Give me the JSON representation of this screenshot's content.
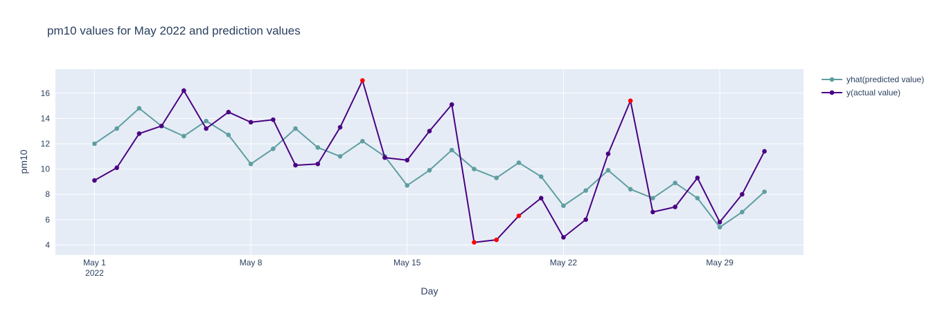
{
  "chart_data": {
    "type": "line",
    "title": "pm10 values for May 2022 and prediction values",
    "xlabel": "Day",
    "ylabel": "pm10",
    "x_ticks": [
      {
        "day": 1,
        "label": "May 1",
        "sublabel": "2022"
      },
      {
        "day": 8,
        "label": "May 8",
        "sublabel": ""
      },
      {
        "day": 15,
        "label": "May 15",
        "sublabel": ""
      },
      {
        "day": 22,
        "label": "May 22",
        "sublabel": ""
      },
      {
        "day": 29,
        "label": "May 29",
        "sublabel": ""
      }
    ],
    "y_ticks": [
      4,
      6,
      8,
      10,
      12,
      14,
      16
    ],
    "xlim": [
      -0.75,
      32.75
    ],
    "ylim": [
      3.2,
      17.9
    ],
    "grid": true,
    "legend_position": "top-right",
    "x": [
      1,
      2,
      3,
      4,
      5,
      6,
      7,
      8,
      9,
      10,
      11,
      12,
      13,
      14,
      15,
      16,
      17,
      18,
      19,
      20,
      21,
      22,
      23,
      24,
      25,
      26,
      27,
      28,
      29,
      30,
      31
    ],
    "series": [
      {
        "name": "yhat(predicted value)",
        "color": "#5f9ea0",
        "values": [
          12.0,
          13.2,
          14.8,
          13.4,
          12.6,
          13.8,
          12.7,
          10.4,
          11.6,
          13.2,
          11.7,
          11.0,
          12.2,
          11.0,
          8.7,
          9.9,
          11.5,
          10.0,
          9.3,
          10.5,
          9.4,
          7.1,
          8.3,
          9.9,
          8.4,
          7.7,
          8.9,
          7.7,
          5.4,
          6.6,
          8.2
        ]
      },
      {
        "name": "y(actual value)",
        "color": "#4b0082",
        "values": [
          9.1,
          10.1,
          12.8,
          13.4,
          16.2,
          13.2,
          14.5,
          13.7,
          13.9,
          10.3,
          10.4,
          13.3,
          17.0,
          10.9,
          10.7,
          13.0,
          15.1,
          4.2,
          4.4,
          6.3,
          7.7,
          4.6,
          6.0,
          11.2,
          15.4,
          6.6,
          7.0,
          9.3,
          5.8,
          8.0,
          11.4
        ],
        "highlight_color": "#ff0000",
        "highlighted_days": [
          13,
          18,
          19,
          20,
          25
        ]
      }
    ]
  }
}
